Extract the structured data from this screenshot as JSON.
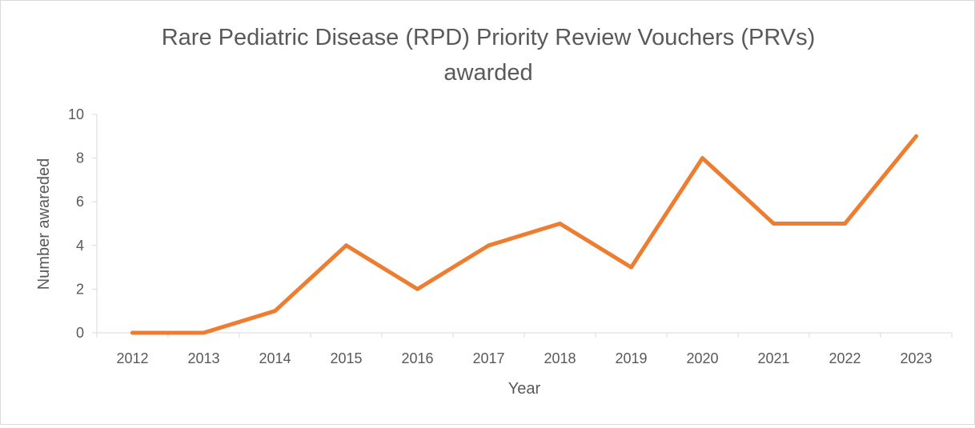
{
  "chart_data": {
    "type": "line",
    "title_lines": [
      "Rare Pediatric Disease (RPD) Priority Review Vouchers (PRVs)",
      "awarded"
    ],
    "xlabel": "Year",
    "ylabel": "Number awareded",
    "categories": [
      "2012",
      "2013",
      "2014",
      "2015",
      "2016",
      "2017",
      "2018",
      "2019",
      "2020",
      "2021",
      "2022",
      "2023"
    ],
    "series": [
      {
        "name": "PRVs awarded",
        "values": [
          0,
          0,
          1,
          4,
          2,
          4,
          5,
          3,
          8,
          5,
          5,
          9
        ],
        "color": "#ED7D31"
      }
    ],
    "ylim": [
      0,
      10
    ],
    "yticks": [
      0,
      2,
      4,
      6,
      8,
      10
    ],
    "grid": false,
    "legend": "none"
  }
}
